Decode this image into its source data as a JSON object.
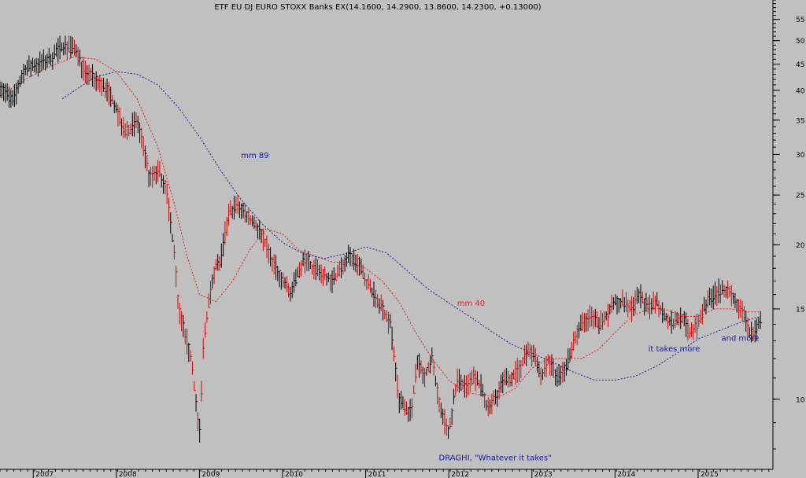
{
  "chart_data": {
    "type": "candlestick",
    "title": "ETF EU DJ EURO STOXX Banks EX(14.1600, 14.2900, 13.8600, 14.2300, +0.13000)",
    "xlabel": "",
    "ylabel": "",
    "y_scale": "log",
    "ylim": [
      7.3,
      60
    ],
    "xlim": [
      2006.6,
      2015.9
    ],
    "grid": false,
    "y_ticks": [
      10,
      15,
      20,
      25,
      30,
      35,
      40,
      45,
      50,
      55
    ],
    "x_ticks": [
      {
        "x": 2007,
        "label": "2007"
      },
      {
        "x": 2008,
        "label": "2008"
      },
      {
        "x": 2009,
        "label": "2009"
      },
      {
        "x": 2010,
        "label": "2010"
      },
      {
        "x": 2011,
        "label": "2011"
      },
      {
        "x": 2012,
        "label": "2012"
      },
      {
        "x": 2013,
        "label": "2013"
      },
      {
        "x": 2014,
        "label": "2014"
      },
      {
        "x": 2015,
        "label": "2015"
      }
    ],
    "price": {
      "x": [
        2006.6,
        2006.75,
        2006.9,
        2007.05,
        2007.2,
        2007.35,
        2007.5,
        2007.6,
        2007.75,
        2007.9,
        2008.0,
        2008.1,
        2008.25,
        2008.4,
        2008.5,
        2008.6,
        2008.7,
        2008.75,
        2008.8,
        2008.9,
        2009.0,
        2009.05,
        2009.1,
        2009.18,
        2009.25,
        2009.35,
        2009.45,
        2009.55,
        2009.65,
        2009.75,
        2009.85,
        2010.0,
        2010.1,
        2010.2,
        2010.3,
        2010.35,
        2010.5,
        2010.6,
        2010.8,
        2010.9,
        2011.0,
        2011.1,
        2011.2,
        2011.3,
        2011.4,
        2011.5,
        2011.55,
        2011.62,
        2011.7,
        2011.8,
        2011.9,
        2012.0,
        2012.1,
        2012.2,
        2012.3,
        2012.4,
        2012.47,
        2012.55,
        2012.65,
        2012.75,
        2012.85,
        2012.95,
        2013.05,
        2013.1,
        2013.2,
        2013.3,
        2013.4,
        2013.5,
        2013.6,
        2013.7,
        2013.8,
        2013.9,
        2014.0,
        2014.1,
        2014.2,
        2014.3,
        2014.4,
        2014.5,
        2014.6,
        2014.7,
        2014.8,
        2014.9,
        2015.0,
        2015.1,
        2015.2,
        2015.3,
        2015.4,
        2015.45,
        2015.55,
        2015.62,
        2015.68,
        2015.75
      ],
      "y": [
        41,
        38,
        44,
        45,
        46,
        49,
        48,
        44,
        42,
        40,
        37,
        33,
        35,
        27,
        28,
        26,
        19,
        15,
        14,
        12,
        8.5,
        13,
        15,
        18,
        18.5,
        23,
        24,
        23,
        22,
        21,
        19,
        17,
        16,
        18,
        19,
        18,
        17.5,
        17,
        19,
        18.5,
        17,
        16,
        15,
        14,
        10,
        9.5,
        9.5,
        12,
        11,
        12,
        9.5,
        8.6,
        11,
        10.5,
        11,
        10.5,
        9.5,
        10,
        10.8,
        11,
        11.5,
        12.5,
        12,
        11,
        12,
        11,
        11.5,
        13,
        14,
        14.5,
        14,
        14.5,
        15.5,
        15.5,
        15,
        16,
        15,
        15.5,
        14.5,
        14,
        14.5,
        13.5,
        14,
        15.5,
        16,
        16.5,
        16,
        15.5,
        14.5,
        13.5,
        13.5,
        14.2
      ],
      "x_red": [
        2007.4,
        2007.55,
        2007.7,
        2007.85,
        2008.0,
        2008.15,
        2008.3,
        2008.45,
        2008.55,
        2008.6,
        2008.7,
        2008.75,
        2008.8,
        2008.95,
        2009.05,
        2009.2,
        2009.4,
        2009.55,
        2009.7,
        2009.85,
        2010.0,
        2010.1,
        2010.3,
        2010.4,
        2010.55,
        2010.7,
        2010.85,
        2011.0,
        2011.15,
        2011.3,
        2011.45,
        2011.5,
        2011.55,
        2011.62,
        2011.72,
        2011.82,
        2011.95,
        2012.05,
        2012.15,
        2012.25,
        2012.35,
        2012.45,
        2012.55,
        2012.65,
        2012.75,
        2012.85,
        2012.95,
        2013.05,
        2013.15,
        2013.25,
        2013.35,
        2013.45,
        2013.6,
        2013.75,
        2013.9,
        2014.05,
        2014.2,
        2014.35,
        2014.5,
        2014.65,
        2014.8,
        2014.95,
        2015.1,
        2015.25,
        2015.4,
        2015.55,
        2015.7
      ],
      "y_red": [
        50,
        47,
        44,
        43,
        40,
        36,
        32,
        30,
        29,
        27,
        22,
        15,
        14,
        13,
        9,
        14,
        16,
        19,
        23,
        22,
        20,
        18,
        20,
        19,
        18,
        17,
        18,
        17.5,
        16.8,
        16,
        14,
        12,
        10.5,
        12,
        11,
        12,
        10,
        9,
        11,
        10,
        11,
        10.5,
        9.3,
        10.5,
        11,
        11.5,
        12,
        11.5,
        11.5,
        11.5,
        12.5,
        13,
        13.5,
        14,
        15,
        14.5,
        15.5,
        15.5,
        15,
        14,
        15,
        14,
        14.5,
        15.5,
        16,
        15,
        13.5
      ]
    },
    "series": [
      {
        "name": "mm 89",
        "x": [
          2007.35,
          2007.55,
          2007.75,
          2008.0,
          2008.25,
          2008.5,
          2008.75,
          2009.0,
          2009.25,
          2009.5,
          2009.75,
          2010.0,
          2010.25,
          2010.5,
          2010.75,
          2011.0,
          2011.25,
          2011.5,
          2011.75,
          2012.0,
          2012.25,
          2012.5,
          2012.75,
          2013.0,
          2013.25,
          2013.5,
          2013.75,
          2014.0,
          2014.25,
          2014.5,
          2014.75,
          2015.0,
          2015.25,
          2015.5,
          2015.75
        ],
        "y": [
          38.5,
          40.5,
          42.5,
          43.5,
          43,
          41,
          37,
          32.5,
          28,
          24.5,
          22,
          20.2,
          19.2,
          18.8,
          19.2,
          19.8,
          19.3,
          17.8,
          16.4,
          15.4,
          14.5,
          13.6,
          12.8,
          12.3,
          11.8,
          11.3,
          10.9,
          10.9,
          11.1,
          11.6,
          12.3,
          13.1,
          13.6,
          14.1,
          14.5
        ],
        "color": "#1a1a9a"
      },
      {
        "name": "mm 40",
        "x": [
          2006.6,
          2006.9,
          2007.2,
          2007.5,
          2007.75,
          2008.0,
          2008.25,
          2008.5,
          2008.7,
          2008.85,
          2009.0,
          2009.2,
          2009.4,
          2009.6,
          2009.8,
          2010.0,
          2010.2,
          2010.4,
          2010.6,
          2010.8,
          2011.0,
          2011.2,
          2011.4,
          2011.6,
          2011.8,
          2012.0,
          2012.2,
          2012.4,
          2012.6,
          2012.8,
          2013.0,
          2013.2,
          2013.4,
          2013.6,
          2013.8,
          2014.0,
          2014.2,
          2014.4,
          2014.6,
          2014.8,
          2015.0,
          2015.2,
          2015.4,
          2015.6,
          2015.75
        ],
        "y": [
          39,
          42,
          44.5,
          46.5,
          46,
          43.5,
          38.5,
          31,
          24,
          19,
          16,
          15.5,
          17,
          19.5,
          21.5,
          21,
          19.5,
          19,
          18.5,
          18.5,
          18,
          17,
          15.5,
          13.5,
          12,
          10.9,
          10.3,
          10.2,
          10.1,
          10.5,
          11.5,
          12,
          12,
          12,
          12.5,
          13.5,
          14.5,
          15,
          15,
          14.5,
          14.5,
          15,
          15,
          14.8,
          14.8
        ],
        "color": "#e11f1f"
      }
    ],
    "annotations": [
      {
        "text": "mm 89",
        "x": 2009.5,
        "y": 29.5,
        "color": "#1a1a9a"
      },
      {
        "text": "mm 40",
        "x": 2012.1,
        "y": 15.2,
        "color": "#e11f1f"
      },
      {
        "text": "DRAGHI, \"Whatever it takes\"",
        "x": 2011.88,
        "y": 7.6,
        "color": "#1a1a9a"
      },
      {
        "text": "it takes more",
        "x": 2014.4,
        "y": 12.4,
        "color": "#1a1a9a"
      },
      {
        "text": "and more",
        "x": 2015.28,
        "y": 13.0,
        "color": "#1a1a9a"
      }
    ]
  }
}
